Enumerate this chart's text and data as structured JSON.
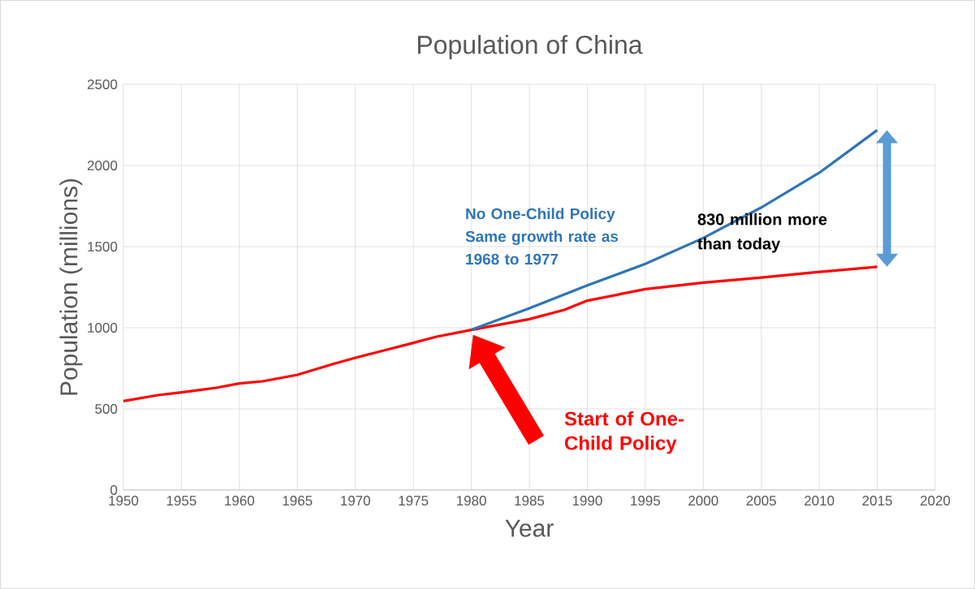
{
  "chart_data": {
    "type": "line",
    "title": "Population of China",
    "xlabel": "Year",
    "ylabel": "Population (millions)",
    "xlim": [
      1950,
      2020
    ],
    "ylim": [
      0,
      2500
    ],
    "xticks": [
      1950,
      1955,
      1960,
      1965,
      1970,
      1975,
      1980,
      1985,
      1990,
      1995,
      2000,
      2005,
      2010,
      2015,
      2020
    ],
    "yticks": [
      0,
      500,
      1000,
      1500,
      2000,
      2500
    ],
    "grid": true,
    "series": [
      {
        "color": "#ff0000",
        "x": [
          1950,
          1953,
          1955,
          1958,
          1960,
          1962,
          1965,
          1968,
          1970,
          1973,
          1975,
          1977,
          1980,
          1985,
          1988,
          1990,
          1995,
          2000,
          2005,
          2010,
          2015
        ],
        "values": [
          548,
          585,
          602,
          630,
          657,
          670,
          710,
          775,
          815,
          870,
          907,
          945,
          987,
          1053,
          1110,
          1167,
          1238,
          1278,
          1309,
          1344,
          1376
        ]
      },
      {
        "color": "#2e75b6",
        "x": [
          1980,
          1985,
          1990,
          1995,
          2000,
          2005,
          2010,
          2015
        ],
        "values": [
          987,
          1120,
          1261,
          1394,
          1553,
          1741,
          1955,
          2218
        ]
      }
    ],
    "annotations": [
      "No One-Child Policy Same growth rate as 1968 to 1977",
      "830 million more than today",
      "Start of One-Child Policy"
    ]
  }
}
